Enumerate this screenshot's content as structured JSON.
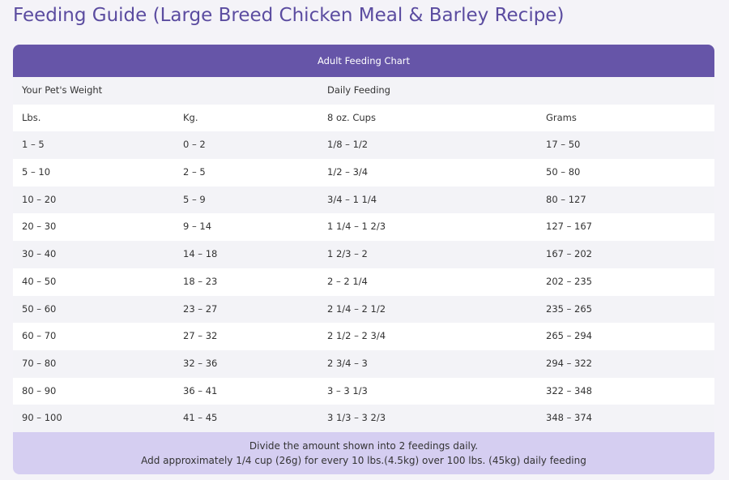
{
  "header": {
    "title": "Feeding Guide (Large Breed Chicken Meal & Barley Recipe)"
  },
  "table": {
    "caption": "Adult Feeding Chart",
    "group_headers": [
      "Your Pet's Weight",
      "Daily Feeding"
    ],
    "columns": [
      "Lbs.",
      "Kg.",
      "8 oz. Cups",
      "Grams"
    ],
    "rows": [
      [
        "1 – 5",
        "0 – 2",
        "1/8 – 1/2",
        "17 – 50"
      ],
      [
        "5 – 10",
        "2 – 5",
        "1/2 – 3/4",
        "50 – 80"
      ],
      [
        "10 – 20",
        "5 – 9",
        "3/4 – 1 1/4",
        "80 – 127"
      ],
      [
        "20 – 30",
        "9 – 14",
        "1 1/4 – 1 2/3",
        "127 – 167"
      ],
      [
        "30 – 40",
        "14 – 18",
        "1 2/3 – 2",
        "167 – 202"
      ],
      [
        "40 – 50",
        "18 – 23",
        "2 – 2 1/4",
        "202 – 235"
      ],
      [
        "50 – 60",
        "23 – 27",
        "2 1/4 – 2 1/2",
        "235 – 265"
      ],
      [
        "60 – 70",
        "27 – 32",
        "2 1/2 – 2 3/4",
        "265 – 294"
      ],
      [
        "70 – 80",
        "32 – 36",
        "2 3/4 – 3",
        "294 – 322"
      ],
      [
        "80 – 90",
        "36 – 41",
        "3 – 3 1/3",
        "322 – 348"
      ],
      [
        "90 – 100",
        "41 – 45",
        "3 1/3 – 3 2/3",
        "348 – 374"
      ]
    ],
    "notes": [
      "Divide the amount shown into 2 feedings daily.",
      "Add approximately 1/4 cup (26g) for every 10 lbs.(4.5kg) over 100 lbs. (45kg) daily feeding"
    ]
  }
}
